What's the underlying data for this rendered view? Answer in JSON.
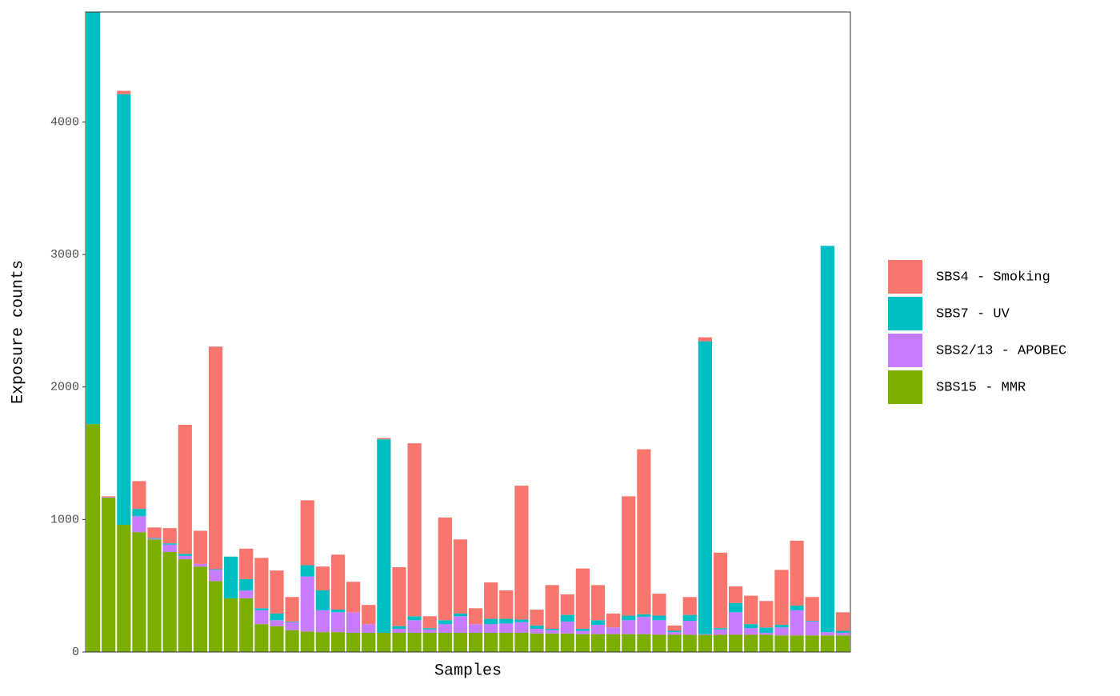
{
  "chart_data": {
    "type": "stacked_bar",
    "x_label": "Samples",
    "y_label": "Exposure counts",
    "categories": [
      null,
      null,
      null,
      null,
      null,
      null,
      null,
      null,
      null,
      null,
      null,
      null,
      null,
      null,
      null,
      null,
      null,
      null,
      null,
      null,
      null,
      null,
      null,
      null,
      null,
      null,
      null,
      null,
      null,
      null,
      null,
      null,
      null,
      null,
      null,
      null,
      null,
      null,
      null,
      null,
      null,
      null,
      null,
      null,
      null,
      null,
      null,
      null,
      null,
      null
    ],
    "series": [
      {
        "name": "SBS4 - Smoking",
        "color": "#F8766D",
        "values": [
          0,
          5,
          25,
          210,
          80,
          115,
          975,
          250,
          1680,
          0,
          230,
          380,
          325,
          185,
          490,
          180,
          415,
          230,
          145,
          10,
          445,
          1305,
          90,
          775,
          560,
          120,
          275,
          215,
          1010,
          120,
          330,
          155,
          455,
          265,
          105,
          900,
          1245,
          165,
          40,
          135,
          30,
          570,
          125,
          215,
          200,
          415,
          490,
          180,
          0,
          140
        ]
      },
      {
        "name": "SBS7 - UV",
        "color": "#00BFC4",
        "values": [
          3200,
          0,
          3250,
          55,
          5,
          10,
          15,
          0,
          5,
          315,
          85,
          15,
          50,
          5,
          85,
          150,
          20,
          0,
          0,
          1460,
          20,
          30,
          10,
          30,
          20,
          0,
          40,
          35,
          20,
          25,
          10,
          50,
          15,
          35,
          0,
          35,
          20,
          35,
          10,
          45,
          2210,
          10,
          70,
          30,
          40,
          20,
          35,
          5,
          2915,
          15
        ]
      },
      {
        "name": "SBS2/13 - APOBEC",
        "color": "#C77CFF",
        "values": [
          0,
          5,
          0,
          120,
          5,
          55,
          25,
          20,
          85,
          0,
          60,
          105,
          45,
          60,
          415,
          165,
          150,
          155,
          65,
          0,
          30,
          95,
          25,
          65,
          125,
          65,
          65,
          70,
          80,
          35,
          25,
          90,
          25,
          70,
          50,
          105,
          130,
          110,
          20,
          105,
          5,
          40,
          170,
          50,
          15,
          60,
          190,
          105,
          25,
          20
        ]
      },
      {
        "name": "SBS15 - MMR",
        "color": "#7CAE00",
        "values": [
          1720,
          1165,
          960,
          905,
          850,
          755,
          700,
          645,
          535,
          405,
          405,
          210,
          195,
          165,
          155,
          150,
          150,
          145,
          145,
          145,
          145,
          145,
          145,
          145,
          145,
          145,
          145,
          145,
          145,
          140,
          140,
          140,
          135,
          135,
          135,
          135,
          135,
          130,
          130,
          130,
          130,
          130,
          130,
          130,
          130,
          125,
          125,
          125,
          125,
          125
        ]
      }
    ],
    "ylim": [
      0,
      4830
    ],
    "yticks": [
      0,
      1000,
      2000,
      3000,
      4000
    ],
    "grid": false,
    "legend": "right"
  }
}
